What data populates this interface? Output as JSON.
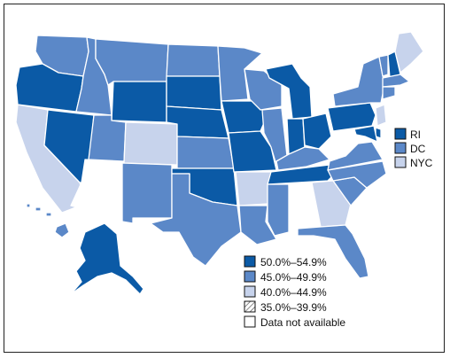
{
  "colors": {
    "c50": "#0b5aa6",
    "c45": "#5b88c8",
    "c40": "#c7d3ec",
    "c35_bg": "#ffffff",
    "c35_hatch": "#555555",
    "na": "#ffffff"
  },
  "map": {
    "states": {
      "WA": "c45",
      "OR": "c50",
      "CA": "c40",
      "ID": "c45",
      "NV": "c50",
      "AZ": "na",
      "MT": "c45",
      "WY": "c50",
      "UT": "c45",
      "CO": "c40",
      "NM": "c45",
      "ND": "c45",
      "SD": "c50",
      "NE": "c50",
      "KS": "c45",
      "OK": "c50",
      "TX": "c45",
      "MN": "c45",
      "IA": "c50",
      "MO": "c50",
      "AR": "c40",
      "LA": "c45",
      "WI": "c45",
      "IL": "c45",
      "MI": "c50",
      "IN": "c50",
      "OH": "c50",
      "KY": "c45",
      "TN": "c50",
      "MS": "c45",
      "AL": "na",
      "GA": "c40",
      "FL": "c45",
      "SC": "c45",
      "NC": "c45",
      "VA": "c45",
      "WV": "na",
      "PA": "c50",
      "NY": "c45",
      "VT": "c45",
      "NH": "c50",
      "ME": "c40",
      "MA": "c45",
      "CT": "c45",
      "NJ": "c40",
      "DE": "c50",
      "MD": "c50",
      "AK": "c50",
      "HI": "c45"
    }
  },
  "insets": [
    {
      "label": "RI",
      "cat": "c50"
    },
    {
      "label": "DC",
      "cat": "c45"
    },
    {
      "label": "NYC",
      "cat": "c40"
    }
  ],
  "legend": [
    {
      "label": "50.0%–54.9%",
      "cat": "c50"
    },
    {
      "label": "45.0%–49.9%",
      "cat": "c45"
    },
    {
      "label": "40.0%–44.9%",
      "cat": "c40"
    },
    {
      "label": "35.0%–39.9%",
      "cat": "c35"
    },
    {
      "label": "Data not available",
      "cat": "na"
    }
  ]
}
